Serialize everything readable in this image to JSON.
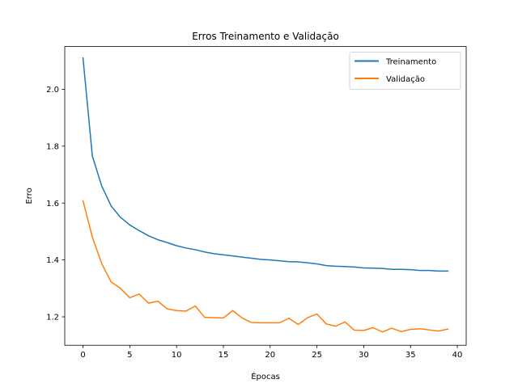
{
  "chart_data": {
    "type": "line",
    "title": "Erros Treinamento e Validação",
    "xlabel": "Épocas",
    "ylabel": "Erro",
    "xlim": [
      -1.95,
      40.95
    ],
    "ylim": [
      1.1,
      2.15
    ],
    "xticks": [
      0,
      5,
      10,
      15,
      20,
      25,
      30,
      35,
      40
    ],
    "yticks": [
      1.2,
      1.4,
      1.6,
      1.8,
      2.0
    ],
    "ytick_labels": [
      "1.2",
      "1.4",
      "1.6",
      "1.8",
      "2.0"
    ],
    "legend_position": "upper right",
    "grid": false,
    "x": [
      0,
      1,
      2,
      3,
      4,
      5,
      6,
      7,
      8,
      9,
      10,
      11,
      12,
      13,
      14,
      15,
      16,
      17,
      18,
      19,
      20,
      21,
      22,
      23,
      24,
      25,
      26,
      27,
      28,
      29,
      30,
      31,
      32,
      33,
      34,
      35,
      36,
      37,
      38,
      39
    ],
    "series": [
      {
        "name": "Treinamento",
        "color": "#1f77b4",
        "values": [
          2.11,
          1.765,
          1.66,
          1.59,
          1.55,
          1.523,
          1.503,
          1.485,
          1.471,
          1.461,
          1.45,
          1.442,
          1.436,
          1.428,
          1.422,
          1.418,
          1.414,
          1.41,
          1.406,
          1.402,
          1.4,
          1.397,
          1.394,
          1.393,
          1.39,
          1.386,
          1.38,
          1.378,
          1.377,
          1.375,
          1.372,
          1.371,
          1.37,
          1.367,
          1.367,
          1.366,
          1.363,
          1.363,
          1.361,
          1.361
        ]
      },
      {
        "name": "Validação",
        "color": "#ff7f0e",
        "values": [
          1.608,
          1.48,
          1.387,
          1.323,
          1.3,
          1.267,
          1.28,
          1.248,
          1.255,
          1.228,
          1.222,
          1.22,
          1.238,
          1.198,
          1.197,
          1.196,
          1.222,
          1.196,
          1.18,
          1.179,
          1.179,
          1.179,
          1.195,
          1.173,
          1.197,
          1.21,
          1.175,
          1.167,
          1.182,
          1.153,
          1.152,
          1.162,
          1.147,
          1.16,
          1.148,
          1.156,
          1.158,
          1.154,
          1.15,
          1.157
        ]
      }
    ]
  }
}
